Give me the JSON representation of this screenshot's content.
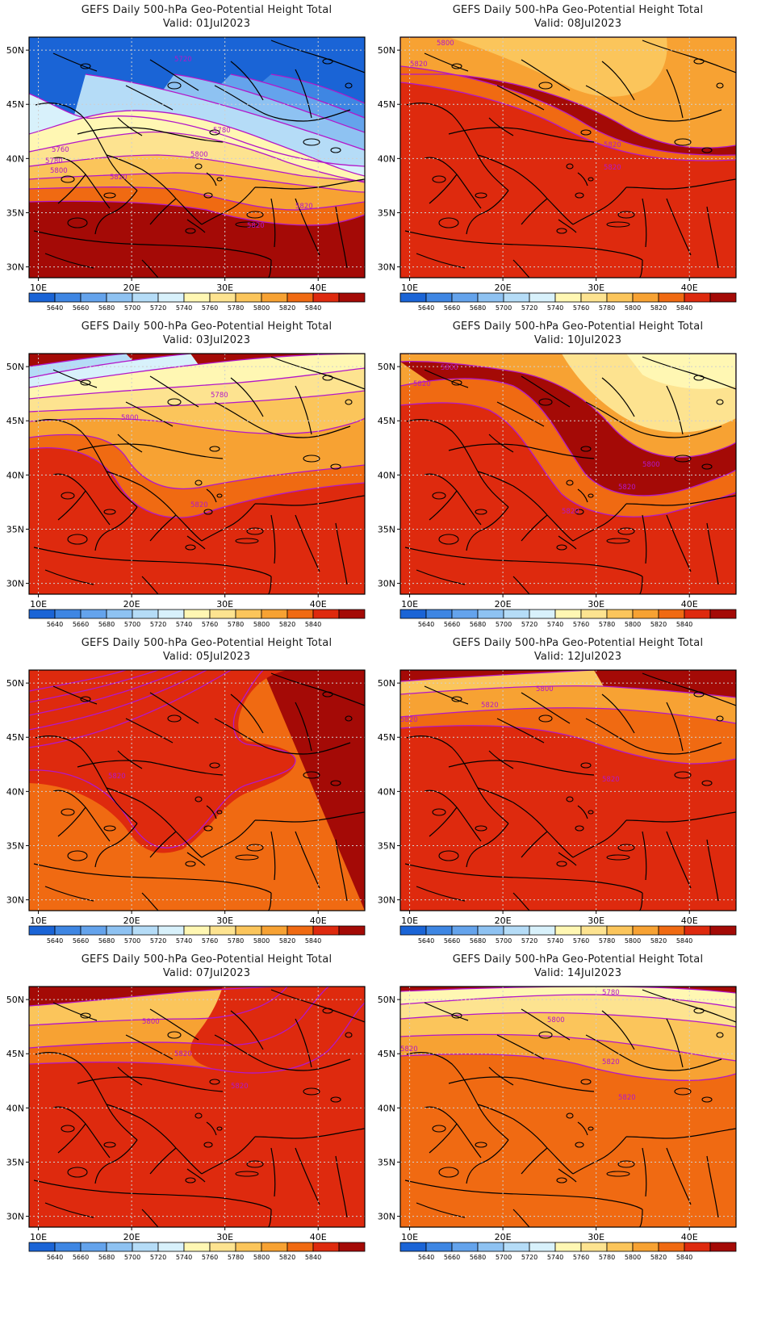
{
  "panel_title": "GEFS Daily 500-hPa Geo-Potential Height Total",
  "valid_prefix": "Valid:",
  "lat_labels": [
    "50N",
    "45N",
    "40N",
    "35N",
    "30N"
  ],
  "lon_labels": [
    "10E",
    "20E",
    "30E",
    "40E"
  ],
  "colorbar": {
    "labels": [
      "5640",
      "5660",
      "5680",
      "5700",
      "5720",
      "5740",
      "5760",
      "5780",
      "5800",
      "5820",
      "5840"
    ],
    "colors": [
      "#1a64d6",
      "#3e86e3",
      "#64a3ec",
      "#8ec2f2",
      "#b5dcf7",
      "#d8f1fb",
      "#fff7b3",
      "#fde390",
      "#fbc55b",
      "#f7a233",
      "#f06a12",
      "#de2a0e",
      "#a40a06"
    ]
  },
  "contour_color": "#b317c9",
  "chart_data": [
    {
      "type": "map",
      "title": "GEFS Daily 500-hPa Geo-Potential Height Total",
      "valid": "01Jul2023",
      "contour_labels": [
        "5720",
        "5780",
        "5760",
        "5780",
        "5800",
        "5800",
        "5820",
        "5820",
        "5820"
      ]
    },
    {
      "type": "map",
      "title": "GEFS Daily 500-hPa Geo-Potential Height Total",
      "valid": "08Jul2023",
      "contour_labels": [
        "5800",
        "5820",
        "5820",
        "5820"
      ]
    },
    {
      "type": "map",
      "title": "GEFS Daily 500-hPa Geo-Potential Height Total",
      "valid": "03Jul2023",
      "contour_labels": [
        "5780",
        "5800",
        "5820"
      ]
    },
    {
      "type": "map",
      "title": "GEFS Daily 500-hPa Geo-Potential Height Total",
      "valid": "10Jul2023",
      "contour_labels": [
        "5800",
        "5820",
        "5800",
        "5820",
        "5820"
      ]
    },
    {
      "type": "map",
      "title": "GEFS Daily 500-hPa Geo-Potential Height Total",
      "valid": "05Jul2023",
      "contour_labels": [
        "5820"
      ]
    },
    {
      "type": "map",
      "title": "GEFS Daily 500-hPa Geo-Potential Height Total",
      "valid": "12Jul2023",
      "contour_labels": [
        "5800",
        "5820",
        "5820",
        "5820"
      ]
    },
    {
      "type": "map",
      "title": "GEFS Daily 500-hPa Geo-Potential Height Total",
      "valid": "07Jul2023",
      "contour_labels": [
        "5800",
        "5820",
        "5820"
      ]
    },
    {
      "type": "map",
      "title": "GEFS Daily 500-hPa Geo-Potential Height Total",
      "valid": "14Jul2023",
      "contour_labels": [
        "5780",
        "5800",
        "5820",
        "5820",
        "5820"
      ]
    }
  ]
}
